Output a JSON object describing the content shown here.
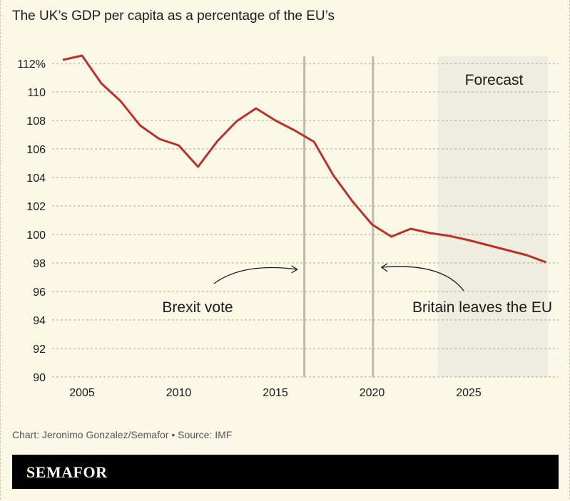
{
  "title": "The UK’s GDP per capita as a percentage of the EU’s",
  "footer": "Chart: Jeronimo Gonzalez/Semafor • Source: IMF",
  "brand": "SEMAFOR",
  "colors": {
    "line": "#b8322a",
    "background": "#fcf8e8",
    "forecast_band": "#efeddf",
    "vline": "#bdbaad"
  },
  "chart_data": {
    "type": "line",
    "title": "The UK’s GDP per capita as a percentage of the EU’s",
    "x": [
      2004,
      2005,
      2006,
      2007,
      2008,
      2009,
      2010,
      2011,
      2012,
      2013,
      2014,
      2015,
      2016,
      2017,
      2018,
      2019,
      2020,
      2021,
      2022,
      2023,
      2024,
      2025,
      2026,
      2027,
      2028,
      2029
    ],
    "series": [
      {
        "values": [
          112.25,
          112.55,
          110.6,
          109.35,
          107.65,
          106.7,
          106.25,
          104.75,
          106.55,
          107.95,
          108.85,
          108.0,
          107.3,
          106.5,
          104.15,
          102.3,
          100.7,
          99.85,
          100.4,
          100.1,
          99.9,
          99.6,
          99.25,
          98.9,
          98.55,
          98.05
        ]
      }
    ],
    "ylim": [
      90,
      112
    ],
    "yticks": [
      90,
      92,
      94,
      96,
      98,
      100,
      102,
      104,
      106,
      108,
      110,
      112
    ],
    "ytick_labels": [
      "90",
      "92",
      "94",
      "96",
      "98",
      "100",
      "102",
      "104",
      "106",
      "108",
      "110",
      "112%"
    ],
    "xticks": [
      2005,
      2010,
      2015,
      2020,
      2025
    ],
    "xtick_labels": [
      "2005",
      "2010",
      "2015",
      "2020",
      "2025"
    ],
    "grid": "horizontal dashed",
    "forecast_region": {
      "from": 2023.4,
      "to": 2029,
      "label": "Forecast"
    },
    "annotations": [
      {
        "x": 2016.5,
        "label": "Brexit vote"
      },
      {
        "x": 2020.05,
        "label": "Britain leaves the EU"
      }
    ]
  }
}
